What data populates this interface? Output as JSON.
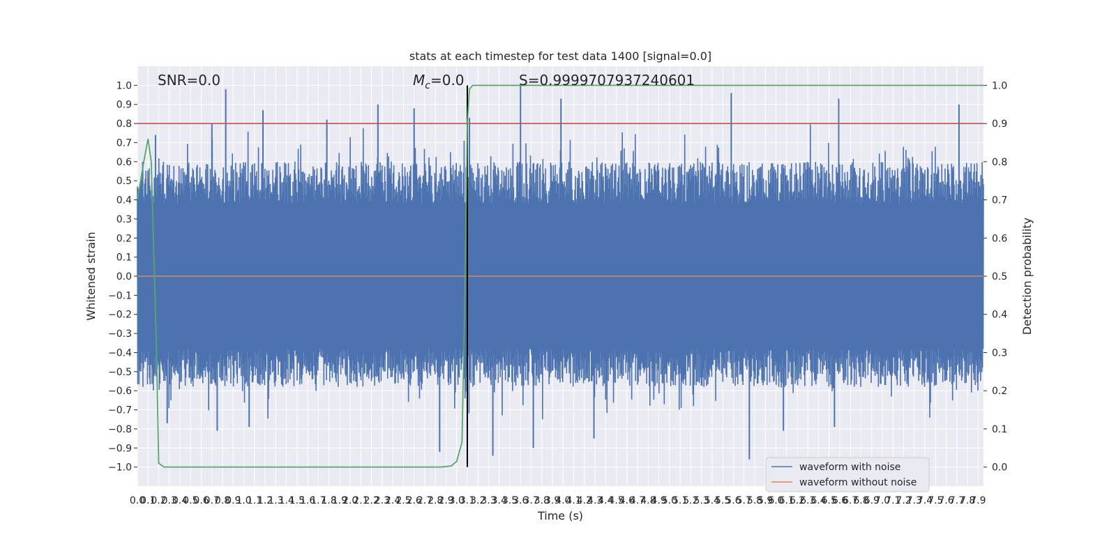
{
  "chart_data": {
    "type": "line",
    "title": "stats at each timestep for test data 1400 [signal=0.0]",
    "xlabel": "Time (s)",
    "ylabel": "Whitened strain",
    "y2label": "Detection probability",
    "xlim": [
      0.0,
      7.95
    ],
    "ylim": [
      -1.1,
      1.1
    ],
    "y2lim": [
      -0.05,
      1.05
    ],
    "xticks": [
      0.0,
      0.1,
      0.2,
      0.3,
      0.4,
      0.5,
      0.6,
      0.7,
      0.8,
      0.9,
      1.0,
      1.1,
      1.2,
      1.3,
      1.4,
      1.5,
      1.6,
      1.7,
      1.8,
      1.9,
      2.0,
      2.1,
      2.2,
      2.3,
      2.4,
      2.5,
      2.6,
      2.7,
      2.8,
      2.9,
      3.0,
      3.1,
      3.2,
      3.3,
      3.4,
      3.5,
      3.6,
      3.7,
      3.8,
      3.9,
      4.0,
      4.1,
      4.2,
      4.3,
      4.4,
      4.5,
      4.6,
      4.7,
      4.8,
      4.9,
      5.0,
      5.1,
      5.2,
      5.3,
      5.4,
      5.5,
      5.6,
      5.7,
      5.8,
      5.9,
      6.0,
      6.1,
      6.2,
      6.3,
      6.4,
      6.5,
      6.6,
      6.7,
      6.8,
      6.9,
      7.0,
      7.1,
      7.2,
      7.3,
      7.4,
      7.5,
      7.6,
      7.7,
      7.8,
      7.9
    ],
    "xtick_labels": [
      "0.0",
      "0.1",
      "0.2",
      "0.3",
      "0.4",
      "0.5",
      "0.6",
      "0.7",
      "0.8",
      "0.9",
      "1.0",
      "1.1",
      "1.2",
      "1.3",
      "1.4",
      "1.5",
      "1.6",
      "1.7",
      "1.8",
      "1.9",
      "2.0",
      "2.1",
      "2.2",
      "2.3",
      "2.4",
      "2.5",
      "2.6",
      "2.7",
      "2.8",
      "2.9",
      "3.0",
      "3.1",
      "3.2",
      "3.3",
      "3.4",
      "3.5",
      "3.6",
      "3.7",
      "3.8",
      "3.9",
      "4.0",
      "4.1",
      "4.2",
      "4.3",
      "4.4",
      "4.5",
      "4.6",
      "4.7",
      "4.8",
      "4.9",
      "5.0",
      "5.1",
      "5.2",
      "5.3",
      "5.4",
      "5.5",
      "5.6",
      "5.7",
      "5.8",
      "5.9",
      "6.0",
      "6.1",
      "6.2",
      "6.3",
      "6.4",
      "6.5",
      "6.6",
      "6.7",
      "6.8",
      "6.9",
      "7.0",
      "7.1",
      "7.2",
      "7.3",
      "7.4",
      "7.5",
      "7.6",
      "7.7",
      "7.8",
      "7.9"
    ],
    "yticks": [
      -1.0,
      -0.9,
      -0.8,
      -0.7,
      -0.6,
      -0.5,
      -0.4,
      -0.3,
      -0.2,
      -0.1,
      0.0,
      0.1,
      0.2,
      0.3,
      0.4,
      0.5,
      0.6,
      0.7,
      0.8,
      0.9,
      1.0
    ],
    "ytick_labels": [
      "−1.0",
      "−0.9",
      "−0.8",
      "−0.7",
      "−0.6",
      "−0.5",
      "−0.4",
      "−0.3",
      "−0.2",
      "−0.1",
      "0.0",
      "0.1",
      "0.2",
      "0.3",
      "0.4",
      "0.5",
      "0.6",
      "0.7",
      "0.8",
      "0.9",
      "1.0"
    ],
    "y2ticks": [
      0.0,
      0.1,
      0.2,
      0.3,
      0.4,
      0.5,
      0.6,
      0.7,
      0.8,
      0.9,
      1.0
    ],
    "y2tick_labels": [
      "0.0",
      "0.1",
      "0.2",
      "0.3",
      "0.4",
      "0.5",
      "0.6",
      "0.7",
      "0.8",
      "0.9",
      "1.0"
    ],
    "grid": true,
    "legend_position": "lower-right",
    "annotations": {
      "snr": "SNR=0.0",
      "mc": "M",
      "mc_sub": "c",
      "mc_value": "=0.0",
      "s": "S=0.9999707937240601"
    },
    "series": [
      {
        "name": "waveform with noise",
        "color": "#4c72b0",
        "axis": "left",
        "style": "noise",
        "t_start": 0.0,
        "t_end": 7.95,
        "envelope_peaks": [
          [
            0.05,
            0.6
          ],
          [
            0.17,
            0.74
          ],
          [
            0.7,
            0.8
          ],
          [
            0.83,
            0.98
          ],
          [
            1.18,
            0.87
          ],
          [
            1.78,
            0.82
          ],
          [
            2.26,
            0.9
          ],
          [
            2.6,
            0.88
          ],
          [
            3.12,
            0.83
          ],
          [
            3.6,
            1.0
          ],
          [
            3.98,
            0.93
          ],
          [
            5.58,
            0.96
          ],
          [
            6.59,
            0.93
          ],
          [
            7.72,
            0.9
          ],
          [
            0.28,
            -0.77
          ],
          [
            0.75,
            -0.81
          ],
          [
            1.05,
            -0.79
          ],
          [
            2.84,
            -0.92
          ],
          [
            3.34,
            -0.94
          ],
          [
            3.72,
            -0.9
          ],
          [
            4.29,
            -0.85
          ],
          [
            5.75,
            -0.96
          ],
          [
            6.07,
            -0.81
          ],
          [
            6.55,
            -0.79
          ]
        ]
      },
      {
        "name": "waveform without noise",
        "color": "#dd8452",
        "axis": "left",
        "x": [
          0.0,
          7.95
        ],
        "y": [
          0.0,
          0.0
        ]
      },
      {
        "color": "#55a868",
        "axis": "right",
        "x": [
          0.0,
          0.06,
          0.1,
          0.13,
          0.18,
          0.2,
          0.25,
          0.4,
          1.0,
          2.0,
          2.7,
          2.85,
          2.95,
          3.0,
          3.05,
          3.07,
          3.09,
          3.1,
          3.12,
          3.15,
          3.2,
          3.3,
          4.0,
          5.0,
          6.0,
          7.0,
          7.95
        ],
        "y": [
          0.7,
          0.8,
          0.86,
          0.8,
          0.3,
          0.01,
          0.0,
          0.0,
          0.0,
          0.0,
          0.0,
          0.0,
          0.003,
          0.015,
          0.065,
          0.35,
          0.7,
          0.9,
          0.99,
          1.0,
          1.0,
          1.0,
          1.0,
          1.0,
          1.0,
          1.0,
          1.0
        ]
      }
    ],
    "reference_lines": [
      {
        "orientation": "horizontal",
        "axis": "right",
        "value": 0.9,
        "color": "#c44e52"
      },
      {
        "orientation": "vertical",
        "value": 3.1,
        "y_from": -1.0,
        "y_to": 1.0,
        "color": "#000000"
      }
    ],
    "colors": {
      "plot_background": "#eaeaf2",
      "grid": "#ffffff",
      "noise_fill": "#4c72b0"
    }
  }
}
